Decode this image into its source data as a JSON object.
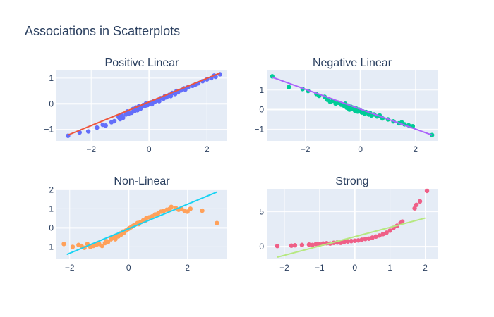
{
  "figure_title": "Associations in Scatterplots",
  "chart_data": [
    {
      "type": "scatter",
      "title": "Positive Linear",
      "point_color": "#636efa",
      "line_color": "#ef553b",
      "xlim": [
        -3.2,
        2.7
      ],
      "ylim": [
        -1.45,
        1.3
      ],
      "xticks": [
        -2,
        0,
        2
      ],
      "yticks": [
        -1,
        0,
        1
      ],
      "trendline": [
        [
          -2.8,
          -1.22
        ],
        [
          2.45,
          1.2
        ]
      ],
      "points": [
        [
          -2.8,
          -1.25
        ],
        [
          -2.4,
          -1.12
        ],
        [
          -2.1,
          -1.08
        ],
        [
          -1.8,
          -0.93
        ],
        [
          -1.6,
          -0.82
        ],
        [
          -1.5,
          -0.85
        ],
        [
          -1.3,
          -0.72
        ],
        [
          -1.2,
          -0.68
        ],
        [
          -1.05,
          -0.52
        ],
        [
          -1.0,
          -0.6
        ],
        [
          -0.95,
          -0.45
        ],
        [
          -0.9,
          -0.55
        ],
        [
          -0.8,
          -0.42
        ],
        [
          -0.75,
          -0.3
        ],
        [
          -0.7,
          -0.38
        ],
        [
          -0.6,
          -0.35
        ],
        [
          -0.55,
          -0.2
        ],
        [
          -0.5,
          -0.28
        ],
        [
          -0.45,
          -0.15
        ],
        [
          -0.4,
          -0.25
        ],
        [
          -0.35,
          -0.1
        ],
        [
          -0.3,
          -0.2
        ],
        [
          -0.25,
          -0.12
        ],
        [
          -0.2,
          -0.05
        ],
        [
          -0.15,
          -0.1
        ],
        [
          -0.1,
          0.02
        ],
        [
          -0.05,
          -0.05
        ],
        [
          0.0,
          0.0
        ],
        [
          0.05,
          0.05
        ],
        [
          0.1,
          -0.02
        ],
        [
          0.15,
          0.1
        ],
        [
          0.2,
          0.08
        ],
        [
          0.3,
          0.15
        ],
        [
          0.35,
          0.1
        ],
        [
          0.4,
          0.22
        ],
        [
          0.5,
          0.2
        ],
        [
          0.55,
          0.3
        ],
        [
          0.6,
          0.25
        ],
        [
          0.7,
          0.35
        ],
        [
          0.75,
          0.3
        ],
        [
          0.8,
          0.42
        ],
        [
          0.9,
          0.38
        ],
        [
          0.95,
          0.5
        ],
        [
          1.0,
          0.45
        ],
        [
          1.1,
          0.52
        ],
        [
          1.2,
          0.6
        ],
        [
          1.25,
          0.55
        ],
        [
          1.35,
          0.65
        ],
        [
          1.5,
          0.7
        ],
        [
          1.6,
          0.75
        ],
        [
          1.7,
          0.8
        ],
        [
          1.85,
          0.88
        ],
        [
          2.0,
          0.95
        ],
        [
          2.15,
          1.0
        ],
        [
          2.25,
          1.1
        ],
        [
          2.3,
          1.05
        ],
        [
          2.45,
          1.15
        ]
      ]
    },
    {
      "type": "scatter",
      "title": "Negative Linear",
      "point_color": "#00cc96",
      "line_color": "#ab63fa",
      "xlim": [
        -3.4,
        2.8
      ],
      "ylim": [
        -1.6,
        2.0
      ],
      "xticks": [
        -2,
        0,
        2
      ],
      "yticks": [
        -1,
        0,
        1
      ],
      "trendline": [
        [
          -3.2,
          1.65
        ],
        [
          2.6,
          -1.3
        ]
      ],
      "points": [
        [
          -3.2,
          1.7
        ],
        [
          -2.6,
          1.15
        ],
        [
          -2.1,
          1.05
        ],
        [
          -1.9,
          0.95
        ],
        [
          -1.6,
          0.8
        ],
        [
          -1.5,
          0.7
        ],
        [
          -1.3,
          0.65
        ],
        [
          -1.2,
          0.5
        ],
        [
          -1.1,
          0.4
        ],
        [
          -1.0,
          0.45
        ],
        [
          -0.9,
          0.3
        ],
        [
          -0.8,
          0.35
        ],
        [
          -0.7,
          0.25
        ],
        [
          -0.6,
          0.2
        ],
        [
          -0.55,
          0.3
        ],
        [
          -0.5,
          0.1
        ],
        [
          -0.45,
          0.2
        ],
        [
          -0.4,
          0.0
        ],
        [
          -0.35,
          0.15
        ],
        [
          -0.3,
          0.05
        ],
        [
          -0.25,
          0.1
        ],
        [
          -0.2,
          -0.05
        ],
        [
          -0.15,
          0.05
        ],
        [
          -0.1,
          -0.1
        ],
        [
          -0.05,
          0.0
        ],
        [
          0.0,
          -0.05
        ],
        [
          0.05,
          -0.15
        ],
        [
          0.1,
          -0.1
        ],
        [
          0.15,
          -0.2
        ],
        [
          0.2,
          -0.12
        ],
        [
          0.3,
          -0.25
        ],
        [
          0.35,
          -0.18
        ],
        [
          0.4,
          -0.3
        ],
        [
          0.5,
          -0.25
        ],
        [
          0.6,
          -0.35
        ],
        [
          0.7,
          -0.3
        ],
        [
          0.8,
          -0.45
        ],
        [
          1.0,
          -0.5
        ],
        [
          1.2,
          -0.6
        ],
        [
          1.4,
          -0.7
        ],
        [
          1.5,
          -0.65
        ],
        [
          1.6,
          -0.75
        ],
        [
          1.75,
          -0.8
        ],
        [
          1.9,
          -0.85
        ],
        [
          2.6,
          -1.3
        ]
      ]
    },
    {
      "type": "scatter",
      "title": "Non-Linear",
      "point_color": "#ffa15a",
      "line_color": "#19d3f3",
      "xlim": [
        -2.45,
        3.35
      ],
      "ylim": [
        -1.65,
        2.05
      ],
      "xticks": [
        -2,
        0,
        2
      ],
      "yticks": [
        -1,
        0,
        1,
        2
      ],
      "trendline": [
        [
          -2.1,
          -1.4
        ],
        [
          3.0,
          1.88
        ]
      ],
      "points": [
        [
          -2.2,
          -0.85
        ],
        [
          -1.9,
          -1.0
        ],
        [
          -1.7,
          -0.9
        ],
        [
          -1.6,
          -0.95
        ],
        [
          -1.5,
          -1.05
        ],
        [
          -1.4,
          -0.85
        ],
        [
          -1.3,
          -1.0
        ],
        [
          -1.2,
          -0.95
        ],
        [
          -1.1,
          -0.9
        ],
        [
          -1.0,
          -0.85
        ],
        [
          -0.9,
          -0.95
        ],
        [
          -0.8,
          -0.8
        ],
        [
          -0.75,
          -0.7
        ],
        [
          -0.7,
          -0.75
        ],
        [
          -0.6,
          -0.6
        ],
        [
          -0.5,
          -0.5
        ],
        [
          -0.45,
          -0.6
        ],
        [
          -0.4,
          -0.4
        ],
        [
          -0.35,
          -0.45
        ],
        [
          -0.3,
          -0.3
        ],
        [
          -0.25,
          -0.35
        ],
        [
          -0.2,
          -0.2
        ],
        [
          -0.15,
          -0.25
        ],
        [
          -0.1,
          -0.15
        ],
        [
          -0.05,
          -0.1
        ],
        [
          0.0,
          -0.05
        ],
        [
          0.05,
          0.0
        ],
        [
          0.1,
          0.05
        ],
        [
          0.15,
          0.1
        ],
        [
          0.2,
          0.15
        ],
        [
          0.3,
          0.25
        ],
        [
          0.35,
          0.2
        ],
        [
          0.4,
          0.3
        ],
        [
          0.5,
          0.4
        ],
        [
          0.55,
          0.35
        ],
        [
          0.6,
          0.5
        ],
        [
          0.7,
          0.55
        ],
        [
          0.8,
          0.6
        ],
        [
          0.9,
          0.7
        ],
        [
          1.0,
          0.75
        ],
        [
          1.1,
          0.85
        ],
        [
          1.2,
          0.9
        ],
        [
          1.3,
          0.95
        ],
        [
          1.4,
          1.0
        ],
        [
          1.45,
          1.1
        ],
        [
          1.6,
          1.05
        ],
        [
          1.7,
          0.95
        ],
        [
          1.8,
          1.0
        ],
        [
          1.9,
          0.9
        ],
        [
          2.0,
          0.85
        ],
        [
          2.1,
          1.0
        ],
        [
          2.5,
          0.9
        ],
        [
          3.0,
          0.25
        ]
      ]
    },
    {
      "type": "scatter",
      "title": "Strong",
      "point_color": "#ef5f87",
      "line_color": "#b6e880",
      "xlim": [
        -2.5,
        2.35
      ],
      "ylim": [
        -1.8,
        8.3
      ],
      "xticks": [
        -2,
        -1,
        0,
        1,
        2
      ],
      "yticks": [
        0,
        5
      ],
      "trendline": [
        [
          -2.2,
          -1.5
        ],
        [
          2.0,
          4.1
        ]
      ],
      "points": [
        [
          -2.2,
          0.1
        ],
        [
          -1.8,
          0.15
        ],
        [
          -1.7,
          0.2
        ],
        [
          -1.5,
          0.25
        ],
        [
          -1.3,
          0.3
        ],
        [
          -1.2,
          0.25
        ],
        [
          -1.1,
          0.4
        ],
        [
          -1.0,
          0.35
        ],
        [
          -0.9,
          0.45
        ],
        [
          -0.8,
          0.5
        ],
        [
          -0.7,
          0.45
        ],
        [
          -0.6,
          0.55
        ],
        [
          -0.5,
          0.6
        ],
        [
          -0.4,
          0.55
        ],
        [
          -0.3,
          0.7
        ],
        [
          -0.2,
          0.75
        ],
        [
          -0.1,
          0.8
        ],
        [
          0.0,
          0.85
        ],
        [
          0.1,
          0.9
        ],
        [
          0.2,
          1.0
        ],
        [
          0.3,
          1.1
        ],
        [
          0.4,
          1.15
        ],
        [
          0.5,
          1.3
        ],
        [
          0.6,
          1.45
        ],
        [
          0.7,
          1.6
        ],
        [
          0.8,
          1.8
        ],
        [
          0.9,
          2.0
        ],
        [
          1.0,
          2.3
        ],
        [
          1.1,
          2.7
        ],
        [
          1.2,
          3.0
        ],
        [
          1.3,
          3.4
        ],
        [
          1.35,
          3.6
        ],
        [
          1.7,
          5.5
        ],
        [
          1.75,
          6.0
        ],
        [
          1.85,
          6.5
        ],
        [
          2.05,
          8.0
        ]
      ]
    }
  ]
}
